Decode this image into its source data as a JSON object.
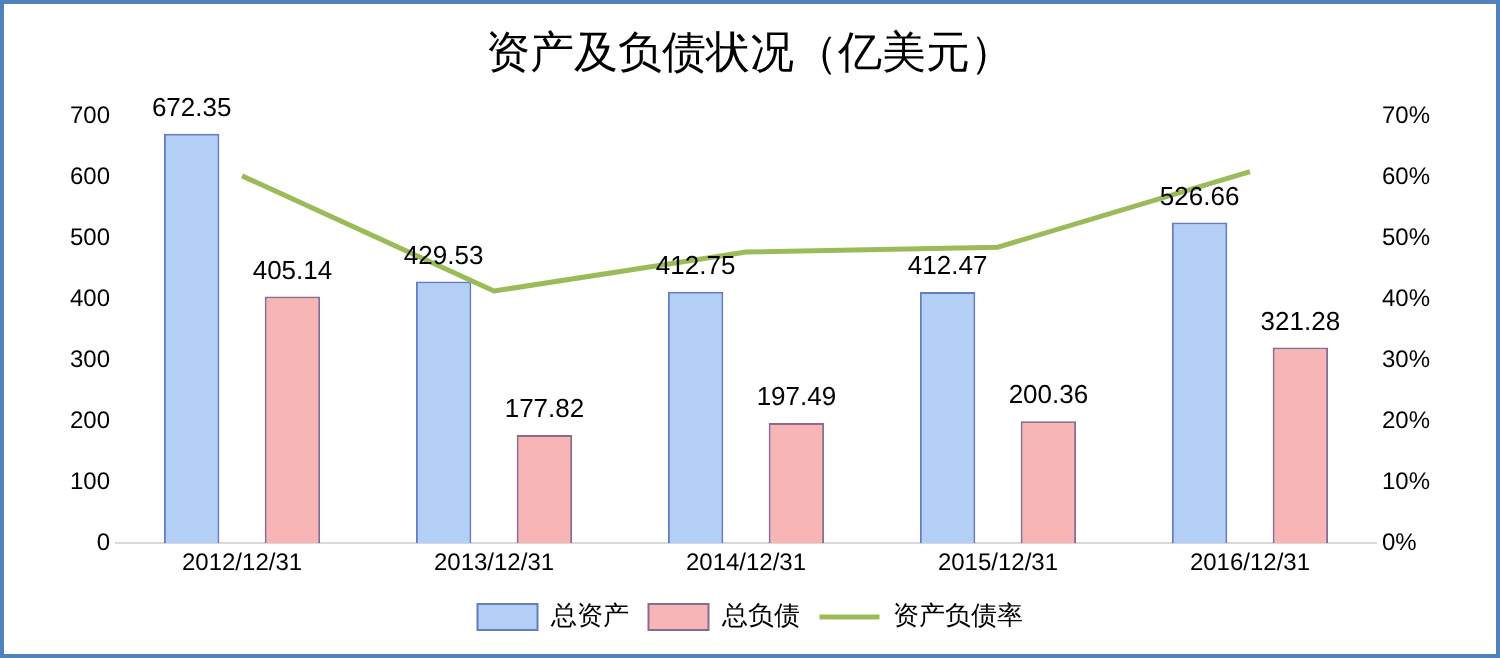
{
  "chart_data": {
    "type": "bar",
    "title": "资产及负债状况（亿美元）",
    "categories": [
      "2012/12/31",
      "2013/12/31",
      "2014/12/31",
      "2015/12/31",
      "2016/12/31"
    ],
    "series": [
      {
        "name": "总资产",
        "color": "#b4cff5",
        "values": [
          672.35,
          429.53,
          412.75,
          412.47,
          526.66
        ],
        "value_labels": [
          "672.35",
          "429.53",
          "412.75",
          "412.47",
          "526.66"
        ]
      },
      {
        "name": "总负债",
        "color": "#f7b5b5",
        "values": [
          405.14,
          177.82,
          197.49,
          200.36,
          321.28
        ],
        "value_labels": [
          "405.14",
          "177.82",
          "197.49",
          "200.36",
          "321.28"
        ]
      },
      {
        "name": "资产负债率",
        "type": "line",
        "axis": "y2",
        "color": "#9bbb59",
        "values": [
          60.3,
          41.4,
          47.8,
          48.6,
          61.0
        ]
      }
    ],
    "ylim": [
      0,
      700
    ],
    "yticks": [
      0,
      100,
      200,
      300,
      400,
      500,
      600,
      700
    ],
    "y2lim": [
      0,
      70
    ],
    "y2ticks": [
      {
        "value": 0,
        "label": "0%"
      },
      {
        "value": 10,
        "label": "10%"
      },
      {
        "value": 20,
        "label": "20%"
      },
      {
        "value": 30,
        "label": "30%"
      },
      {
        "value": 40,
        "label": "40%"
      },
      {
        "value": 50,
        "label": "50%"
      },
      {
        "value": 60,
        "label": "60%"
      },
      {
        "value": 70,
        "label": "70%"
      }
    ],
    "grid": false,
    "legend": "bottom",
    "marker": "none",
    "line_style": "solid"
  }
}
